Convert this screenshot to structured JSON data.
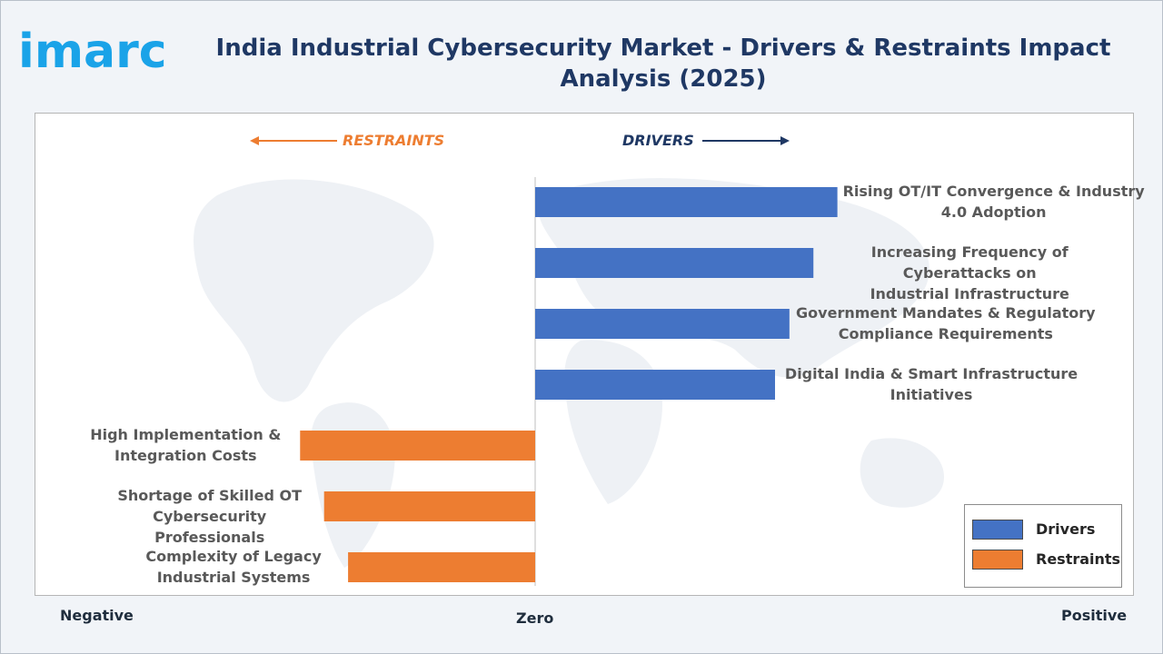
{
  "brand": {
    "name": "imarc",
    "color": "#1aa3e8"
  },
  "title": "India Industrial Cybersecurity Market - Drivers & Restraints Impact Analysis (2025)",
  "direction_labels": {
    "restraints": "RESTRAINTS",
    "drivers": "DRIVERS"
  },
  "axis_labels": {
    "negative": "Negative",
    "zero": "Zero",
    "positive": "Positive"
  },
  "legend": [
    {
      "label": "Drivers",
      "color": "#4472c4"
    },
    {
      "label": "Restraints",
      "color": "#ed7d31"
    }
  ],
  "chart_data": {
    "type": "bar",
    "orientation": "horizontal-diverging",
    "xlim": [
      -1.0,
      1.0
    ],
    "grid": false,
    "legend_position": "bottom-right",
    "categories": [
      "Rising OT/IT Convergence & Industry 4.0 Adoption",
      "Increasing Frequency of Cyberattacks on Industrial Infrastructure",
      "Government Mandates & Regulatory Compliance Requirements",
      "Digital India & Smart Infrastructure Initiatives",
      "High Implementation & Integration Costs",
      "Shortage of Skilled OT Cybersecurity Professionals",
      "Complexity of Legacy Industrial Systems"
    ],
    "series": [
      {
        "name": "Drivers",
        "color": "#4472c4",
        "values": [
          0.63,
          0.58,
          0.53,
          0.5,
          null,
          null,
          null
        ]
      },
      {
        "name": "Restraints",
        "color": "#ed7d31",
        "values": [
          null,
          null,
          null,
          null,
          -0.49,
          -0.44,
          -0.39
        ]
      }
    ],
    "label_lines": [
      [
        "Rising OT/IT Convergence & Industry",
        "4.0 Adoption"
      ],
      [
        "Increasing Frequency of Cyberattacks on",
        "Industrial Infrastructure"
      ],
      [
        "Government Mandates & Regulatory",
        "Compliance Requirements"
      ],
      [
        "Digital India & Smart Infrastructure",
        "Initiatives"
      ],
      [
        "High Implementation &",
        "Integration Costs"
      ],
      [
        "Shortage of Skilled OT",
        "Cybersecurity Professionals"
      ],
      [
        "Complexity of Legacy",
        "Industrial Systems"
      ]
    ]
  }
}
